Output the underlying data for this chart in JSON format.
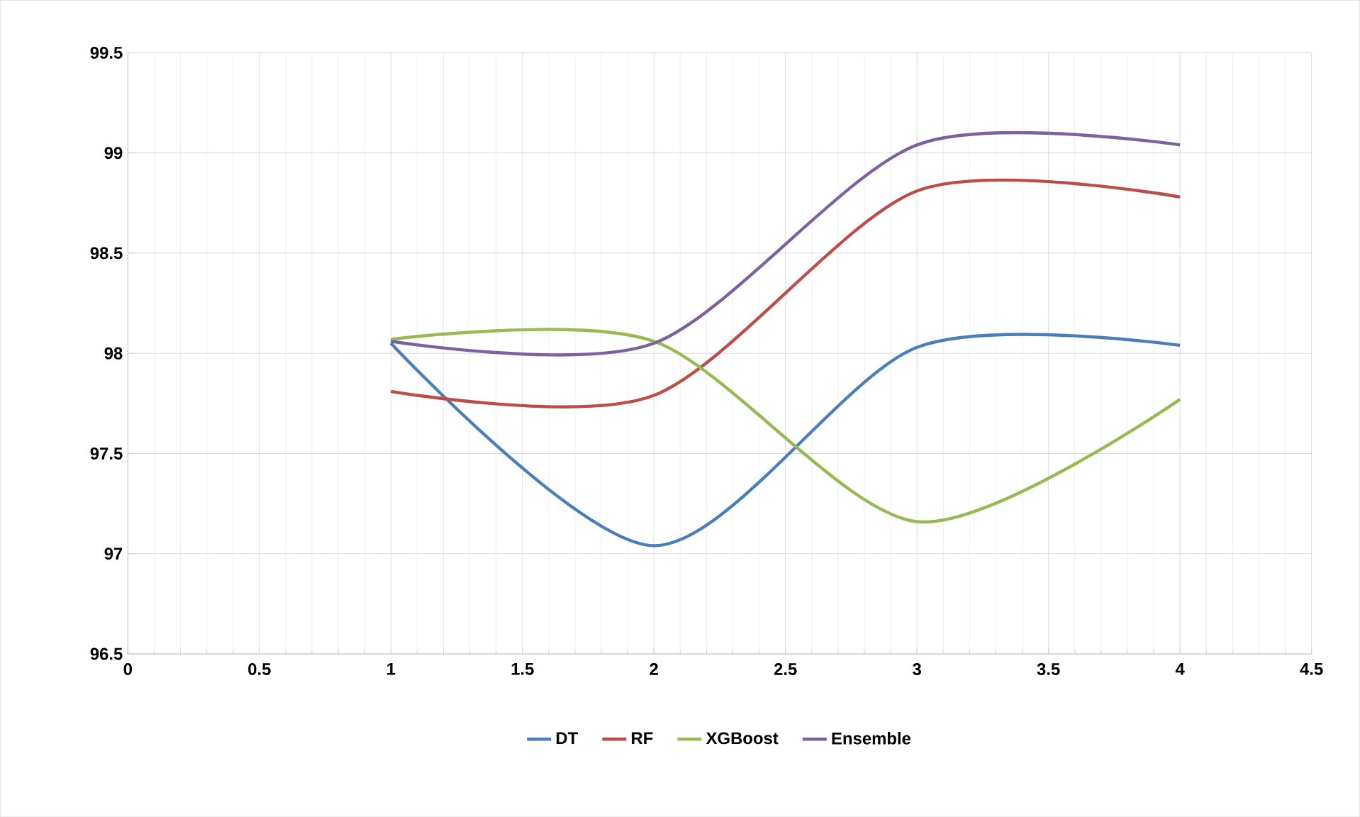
{
  "chart_data": {
    "type": "line",
    "x": [
      1,
      2,
      3,
      4
    ],
    "series": [
      {
        "name": "DT",
        "color": "#4a7ebb",
        "values": [
          98.05,
          97.04,
          98.03,
          98.04
        ]
      },
      {
        "name": "RF",
        "color": "#be4b48",
        "values": [
          97.81,
          97.79,
          98.81,
          98.78
        ]
      },
      {
        "name": "XGBoost",
        "color": "#98b954",
        "values": [
          98.07,
          98.06,
          97.16,
          97.77
        ]
      },
      {
        "name": "Ensemble",
        "color": "#7d60a0",
        "values": [
          98.06,
          98.05,
          99.04,
          99.04
        ]
      }
    ],
    "xlim": [
      0,
      4.5
    ],
    "xticks": [
      0,
      0.5,
      1,
      1.5,
      2,
      2.5,
      3,
      3.5,
      4,
      4.5
    ],
    "ylim": [
      96.5,
      99.5
    ],
    "yticks": [
      96.5,
      97,
      97.5,
      98,
      98.5,
      99,
      99.5
    ],
    "grid": true,
    "legend": "bottom",
    "marker": "none",
    "line_style": "solid"
  }
}
